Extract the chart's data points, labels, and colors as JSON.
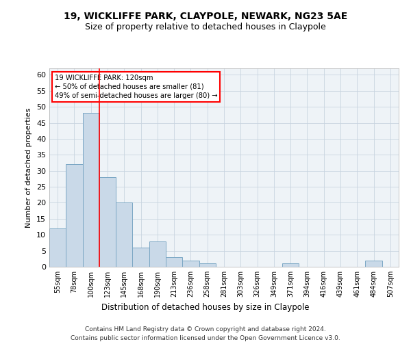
{
  "title1": "19, WICKLIFFE PARK, CLAYPOLE, NEWARK, NG23 5AE",
  "title2": "Size of property relative to detached houses in Claypole",
  "xlabel": "Distribution of detached houses by size in Claypole",
  "ylabel": "Number of detached properties",
  "footnote1": "Contains HM Land Registry data © Crown copyright and database right 2024.",
  "footnote2": "Contains public sector information licensed under the Open Government Licence v3.0.",
  "annotation_title": "19 WICKLIFFE PARK: 120sqm",
  "annotation_line1": "← 50% of detached houses are smaller (81)",
  "annotation_line2": "49% of semi-detached houses are larger (80) →",
  "bar_labels": [
    "55sqm",
    "78sqm",
    "100sqm",
    "123sqm",
    "145sqm",
    "168sqm",
    "190sqm",
    "213sqm",
    "236sqm",
    "258sqm",
    "281sqm",
    "303sqm",
    "326sqm",
    "349sqm",
    "371sqm",
    "394sqm",
    "416sqm",
    "439sqm",
    "461sqm",
    "484sqm",
    "507sqm"
  ],
  "bar_values": [
    12,
    32,
    48,
    28,
    20,
    6,
    8,
    3,
    2,
    1,
    0,
    0,
    0,
    0,
    1,
    0,
    0,
    0,
    0,
    2,
    0
  ],
  "bar_color": "#c9d9e8",
  "bar_edge_color": "#7ba7c4",
  "red_line_x": 2.5,
  "ylim": [
    0,
    62
  ],
  "yticks": [
    0,
    5,
    10,
    15,
    20,
    25,
    30,
    35,
    40,
    45,
    50,
    55,
    60
  ],
  "figsize": [
    6.0,
    5.0
  ],
  "dpi": 100
}
